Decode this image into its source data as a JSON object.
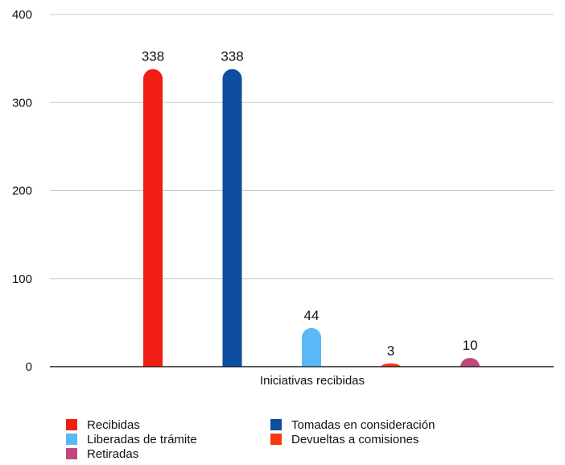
{
  "chart_data": {
    "type": "bar",
    "categories": [
      "Iniciativas recibidas"
    ],
    "series": [
      {
        "name": "Recibidas",
        "values": [
          338
        ],
        "color": "#f01e12"
      },
      {
        "name": "Tomadas en consideración",
        "values": [
          338
        ],
        "color": "#0e4ea0"
      },
      {
        "name": "Liberadas de trámite",
        "values": [
          44
        ],
        "color": "#5ab8f6"
      },
      {
        "name": "Devueltas a comisiones",
        "values": [
          3
        ],
        "color": "#f53a10"
      },
      {
        "name": "Retiradas",
        "values": [
          10
        ],
        "color": "#c1487e"
      }
    ],
    "yticks": [
      "0",
      "100",
      "200",
      "300",
      "400"
    ],
    "ylim": [
      0,
      400
    ],
    "grid": true,
    "legend_position": "bottom"
  }
}
